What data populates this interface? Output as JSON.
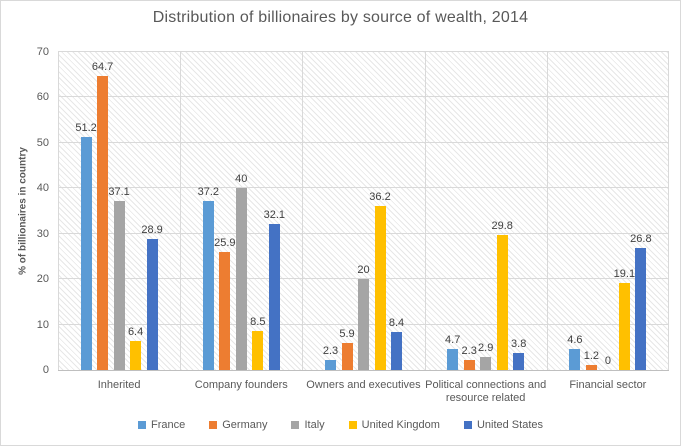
{
  "chart_data": {
    "type": "bar",
    "title": "Distribution of billionaires by source of wealth, 2014",
    "xlabel": "",
    "ylabel": "% of billionaires  in country",
    "ylim": [
      0,
      70
    ],
    "yticks": [
      0,
      10,
      20,
      30,
      40,
      50,
      60,
      70
    ],
    "grid": true,
    "plot_pattern": "light-downward-diagonal-hatch",
    "data_labels": true,
    "legend_position": "bottom",
    "categories": [
      "Inherited",
      "Company founders",
      "Owners and executives",
      "Political connections and resource related",
      "Financial sector"
    ],
    "series": [
      {
        "name": "France",
        "color": "#5B9BD5",
        "values": [
          51.2,
          37.2,
          2.3,
          4.7,
          4.6
        ]
      },
      {
        "name": "Germany",
        "color": "#ED7D31",
        "values": [
          64.7,
          25.9,
          5.9,
          2.3,
          1.2
        ]
      },
      {
        "name": "Italy",
        "color": "#A5A5A5",
        "values": [
          37.1,
          40,
          20,
          2.9,
          0
        ]
      },
      {
        "name": "United Kingdom",
        "color": "#FFC000",
        "values": [
          6.4,
          8.5,
          36.2,
          29.8,
          19.1
        ]
      },
      {
        "name": "United States",
        "color": "#4472C4",
        "values": [
          28.9,
          32.1,
          8.4,
          3.8,
          26.8
        ]
      }
    ],
    "colors": {
      "gridline": "#D9D9D9",
      "axis_line": "#BFBFBF",
      "text_gray": "#595959",
      "data_label": "#404040",
      "hatch_line": "#E7E7E7",
      "background": "#FFFFFF"
    }
  }
}
